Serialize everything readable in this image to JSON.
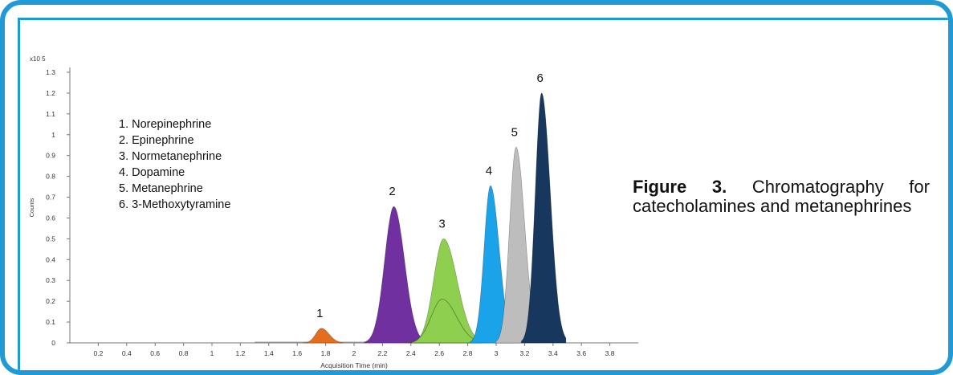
{
  "figure": {
    "label": "Figure 3.",
    "caption": "Chromatography for catecholamines and metanephrines"
  },
  "colors": {
    "frame": "#1e9bd6",
    "peak1": "#e36f1e",
    "peak2": "#7030a0",
    "peak3": "#8fcf50",
    "peak4": "#1aa3e8",
    "peak5": "#bdbdbd",
    "peak6": "#17375e"
  },
  "chart_data": {
    "type": "area",
    "title": "",
    "xlabel": "Acquisition Time (min)",
    "ylabel": "Counts",
    "y_multiplier": "x10 5",
    "xlim": [
      0,
      4.0
    ],
    "ylim": [
      0,
      1.3
    ],
    "x_ticks": [
      "0.2",
      "0.4",
      "0.6",
      "0.8",
      "1",
      "1.2",
      "1.4",
      "1.6",
      "1.8",
      "2",
      "2.2",
      "2.4",
      "2.6",
      "2.8",
      "3",
      "3.2",
      "3.4",
      "3.6",
      "3.8"
    ],
    "y_ticks": [
      "0",
      "0.1",
      "0.2",
      "0.3",
      "0.4",
      "0.5",
      "0.6",
      "0.7",
      "0.8",
      "0.9",
      "1",
      "1.1",
      "1.2",
      "1.3"
    ],
    "legend": [
      "1. Norepinephrine",
      "2. Epinephrine",
      "3. Normetanephrine",
      "4. Dopamine",
      "5. Metanephrine",
      "6. 3-Methoxytyramine"
    ],
    "series": [
      {
        "name": "1",
        "retention_time": 1.77,
        "height": 0.07,
        "width": 0.04
      },
      {
        "name": "2",
        "retention_time": 2.28,
        "height": 0.655,
        "width": 0.065
      },
      {
        "name": "3",
        "retention_time": 2.63,
        "height": 0.5,
        "width": 0.07,
        "shoulder_height": 0.21
      },
      {
        "name": "4",
        "retention_time": 2.96,
        "height": 0.755,
        "width": 0.045
      },
      {
        "name": "5",
        "retention_time": 3.14,
        "height": 0.94,
        "width": 0.045
      },
      {
        "name": "6",
        "retention_time": 3.32,
        "height": 1.2,
        "width": 0.045
      }
    ]
  }
}
